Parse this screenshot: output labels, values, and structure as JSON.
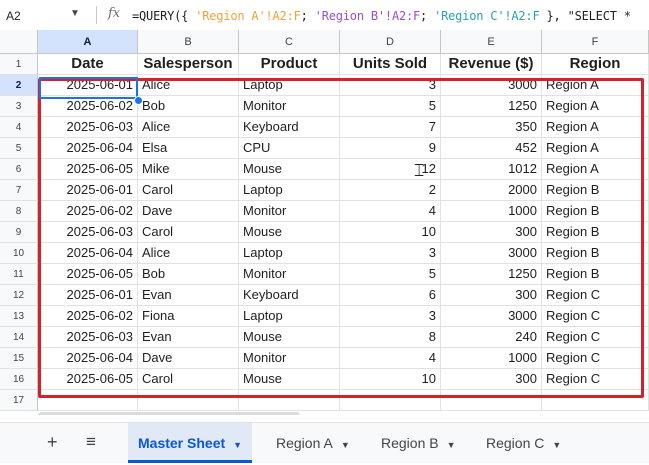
{
  "formula_bar": {
    "cell_ref": "A2",
    "fx": "fx",
    "formula_prefix": "=QUERY({ ",
    "range_a": "'Region A'!A2:F",
    "sep1": "; ",
    "range_b": "'Region B'!A2:F",
    "sep2": "; ",
    "range_c": "'Region C'!A2:F",
    "formula_suffix": " }, \"SELECT *"
  },
  "columns": [
    "A",
    "B",
    "C",
    "D",
    "E",
    "F"
  ],
  "row_numbers": [
    "1",
    "2",
    "3",
    "4",
    "5",
    "6",
    "7",
    "8",
    "9",
    "10",
    "11",
    "12",
    "13",
    "14",
    "15",
    "16",
    "17"
  ],
  "headers": [
    "Date",
    "Salesperson",
    "Product",
    "Units Sold",
    "Revenue ($)",
    "Region"
  ],
  "rows": [
    [
      "2025-06-01",
      "Alice",
      "Laptop",
      "3",
      "3000",
      "Region A"
    ],
    [
      "2025-06-02",
      "Bob",
      "Monitor",
      "5",
      "1250",
      "Region A"
    ],
    [
      "2025-06-03",
      "Alice",
      "Keyboard",
      "7",
      "350",
      "Region A"
    ],
    [
      "2025-06-04",
      "Elsa",
      "CPU",
      "9",
      "452",
      "Region A"
    ],
    [
      "2025-06-05",
      "Mike",
      "Mouse",
      "12",
      "1012",
      "Region A"
    ],
    [
      "2025-06-01",
      "Carol",
      "Laptop",
      "2",
      "2000",
      "Region B"
    ],
    [
      "2025-06-02",
      "Dave",
      "Monitor",
      "4",
      "1000",
      "Region B"
    ],
    [
      "2025-06-03",
      "Carol",
      "Mouse",
      "10",
      "300",
      "Region B"
    ],
    [
      "2025-06-04",
      "Alice",
      "Laptop",
      "3",
      "3000",
      "Region B"
    ],
    [
      "2025-06-05",
      "Bob",
      "Monitor",
      "5",
      "1250",
      "Region B"
    ],
    [
      "2025-06-01",
      "Evan",
      "Keyboard",
      "6",
      "300",
      "Region C"
    ],
    [
      "2025-06-02",
      "Fiona",
      "Laptop",
      "3",
      "3000",
      "Region C"
    ],
    [
      "2025-06-03",
      "Evan",
      "Mouse",
      "8",
      "240",
      "Region C"
    ],
    [
      "2025-06-04",
      "Dave",
      "Monitor",
      "4",
      "1000",
      "Region C"
    ],
    [
      "2025-06-05",
      "Carol",
      "Mouse",
      "10",
      "300",
      "Region C"
    ]
  ],
  "sheet_tabs": {
    "add": "+",
    "menu": "≡",
    "tabs": [
      "Master Sheet",
      "Region A",
      "Region B",
      "Region C"
    ],
    "active": 0
  },
  "colors": {
    "highlight_border": "#d6202a",
    "selection": "#1a73e8",
    "active_tab": "#0b57d0"
  },
  "icons": [
    "chevron-down-icon",
    "fx-icon",
    "plus-icon",
    "menu-icon",
    "cursor-icon"
  ]
}
